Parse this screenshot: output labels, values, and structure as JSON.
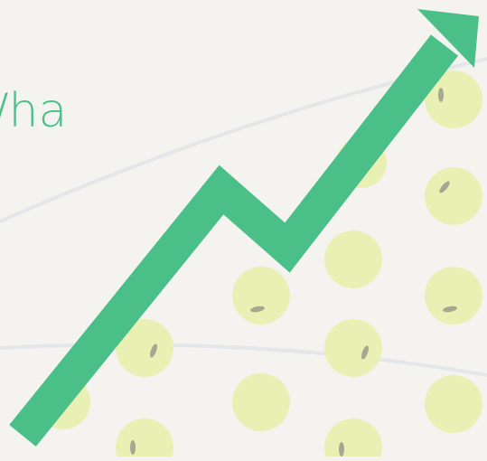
{
  "text": {
    "unit": "/ha"
  }
}
